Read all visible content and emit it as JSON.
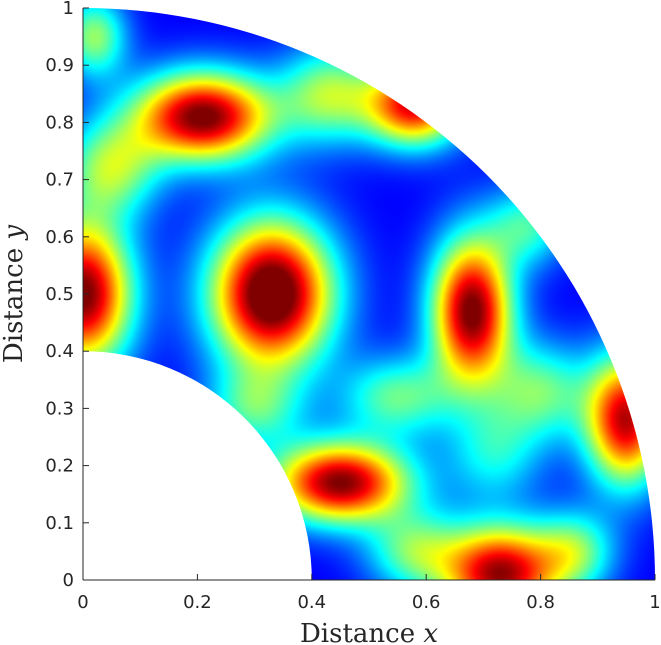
{
  "chart_data": {
    "type": "heatmap",
    "xlabel": "Distance",
    "xlabel_var": "x",
    "ylabel": "Distance",
    "ylabel_var": "y",
    "xlim": [
      0,
      1
    ],
    "ylim": [
      0,
      1
    ],
    "x_ticks": [
      0,
      0.2,
      0.4,
      0.6,
      0.8,
      1
    ],
    "x_tick_labels": [
      "0",
      "0.2",
      "0.4",
      "0.6",
      "0.8",
      "1"
    ],
    "y_ticks": [
      0,
      0.1,
      0.2,
      0.3,
      0.4,
      0.5,
      0.6,
      0.7,
      0.8,
      0.9,
      1
    ],
    "y_tick_labels": [
      "0",
      "0.1",
      "0.2",
      "0.3",
      "0.4",
      "0.5",
      "0.6",
      "0.7",
      "0.8",
      "0.9",
      "1"
    ],
    "domain": {
      "shape": "annular-quarter",
      "inner_radius": 0.4,
      "outer_radius": 1.0
    },
    "colormap": "jet",
    "grid": false,
    "hotspots": [
      {
        "x": 0.33,
        "y": 0.5,
        "intensity": 1.0,
        "sx": 0.075,
        "sy": 0.09
      },
      {
        "x": 0.21,
        "y": 0.81,
        "intensity": 0.9,
        "sx": 0.085,
        "sy": 0.055
      },
      {
        "x": 0.68,
        "y": 0.47,
        "intensity": 0.9,
        "sx": 0.05,
        "sy": 0.09
      },
      {
        "x": 0.0,
        "y": 0.5,
        "intensity": 0.9,
        "sx": 0.06,
        "sy": 0.09
      },
      {
        "x": 0.45,
        "y": 0.17,
        "intensity": 0.88,
        "sx": 0.085,
        "sy": 0.05
      },
      {
        "x": 0.73,
        "y": 0.01,
        "intensity": 0.85,
        "sx": 0.07,
        "sy": 0.06
      },
      {
        "x": 0.95,
        "y": 0.28,
        "intensity": 0.82,
        "sx": 0.05,
        "sy": 0.08
      },
      {
        "x": 0.58,
        "y": 0.83,
        "intensity": 0.78,
        "sx": 0.06,
        "sy": 0.05
      }
    ],
    "background_features": [
      {
        "x": 0.43,
        "y": 0.85,
        "intensity": 0.4,
        "sx": 0.06,
        "sy": 0.06
      },
      {
        "x": 0.55,
        "y": 0.32,
        "intensity": 0.35,
        "sx": 0.07,
        "sy": 0.05
      },
      {
        "x": 0.8,
        "y": 0.33,
        "intensity": 0.35,
        "sx": 0.06,
        "sy": 0.06
      },
      {
        "x": 0.58,
        "y": 0.05,
        "intensity": 0.35,
        "sx": 0.06,
        "sy": 0.05
      },
      {
        "x": 0.86,
        "y": 0.05,
        "intensity": 0.35,
        "sx": 0.05,
        "sy": 0.05
      },
      {
        "x": 0.02,
        "y": 0.95,
        "intensity": 0.4,
        "sx": 0.04,
        "sy": 0.05
      },
      {
        "x": 0.05,
        "y": 0.72,
        "intensity": 0.4,
        "sx": 0.06,
        "sy": 0.06
      },
      {
        "x": 0.78,
        "y": 0.62,
        "intensity": 0.3,
        "sx": 0.05,
        "sy": 0.05
      },
      {
        "x": 0.3,
        "y": 0.3,
        "intensity": 0.3,
        "sx": 0.06,
        "sy": 0.05
      },
      {
        "x": 0.72,
        "y": 0.22,
        "intensity": 0.25,
        "sx": 0.06,
        "sy": 0.06
      }
    ]
  }
}
